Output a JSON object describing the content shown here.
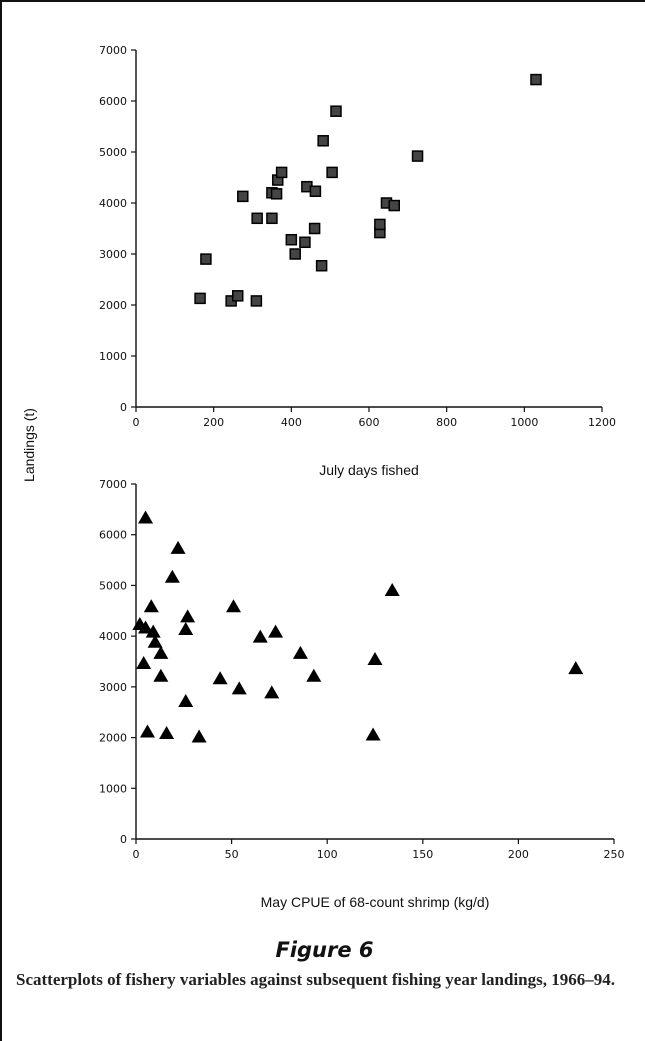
{
  "figure": {
    "title": "Figure 6",
    "caption": "Scatterplots of fishery variables against subsequent fishing year landings, 1966–94."
  },
  "shared_ylabel": "Landings (t)",
  "chart_data": [
    {
      "type": "scatter",
      "marker": "square",
      "xlabel": "July days fished",
      "ylabel": "Landings (t)",
      "xlim": [
        0,
        1200
      ],
      "ylim": [
        0,
        7000
      ],
      "xticks": [
        0,
        200,
        400,
        600,
        800,
        1000,
        1200
      ],
      "yticks": [
        0,
        1000,
        2000,
        3000,
        4000,
        5000,
        6000,
        7000
      ],
      "grid": false,
      "points": [
        {
          "x": 165,
          "y": 2130
        },
        {
          "x": 180,
          "y": 2900
        },
        {
          "x": 245,
          "y": 2080
        },
        {
          "x": 262,
          "y": 2180
        },
        {
          "x": 275,
          "y": 4130
        },
        {
          "x": 310,
          "y": 2080
        },
        {
          "x": 312,
          "y": 3700
        },
        {
          "x": 350,
          "y": 3700
        },
        {
          "x": 350,
          "y": 4200
        },
        {
          "x": 362,
          "y": 4180
        },
        {
          "x": 365,
          "y": 4450
        },
        {
          "x": 375,
          "y": 4600
        },
        {
          "x": 400,
          "y": 3280
        },
        {
          "x": 410,
          "y": 3000
        },
        {
          "x": 435,
          "y": 3230
        },
        {
          "x": 440,
          "y": 4320
        },
        {
          "x": 460,
          "y": 3500
        },
        {
          "x": 462,
          "y": 4230
        },
        {
          "x": 478,
          "y": 2770
        },
        {
          "x": 482,
          "y": 5220
        },
        {
          "x": 505,
          "y": 4600
        },
        {
          "x": 515,
          "y": 5800
        },
        {
          "x": 628,
          "y": 3420
        },
        {
          "x": 628,
          "y": 3580
        },
        {
          "x": 645,
          "y": 4000
        },
        {
          "x": 665,
          "y": 3950
        },
        {
          "x": 725,
          "y": 4920
        },
        {
          "x": 1030,
          "y": 6420
        }
      ]
    },
    {
      "type": "scatter",
      "marker": "triangle",
      "xlabel": "May CPUE of 68-count shrimp (kg/d)",
      "ylabel": "Landings (t)",
      "xlim": [
        0,
        250
      ],
      "ylim": [
        0,
        7000
      ],
      "xticks": [
        0,
        50,
        100,
        150,
        200,
        250
      ],
      "yticks": [
        0,
        1000,
        2000,
        3000,
        4000,
        5000,
        6000,
        7000
      ],
      "grid": false,
      "points": [
        {
          "x": 2,
          "y": 4250
        },
        {
          "x": 4,
          "y": 3480
        },
        {
          "x": 5,
          "y": 6350
        },
        {
          "x": 5,
          "y": 4180
        },
        {
          "x": 6,
          "y": 2130
        },
        {
          "x": 8,
          "y": 4600
        },
        {
          "x": 9,
          "y": 4100
        },
        {
          "x": 10,
          "y": 3900
        },
        {
          "x": 13,
          "y": 3680
        },
        {
          "x": 13,
          "y": 3230
        },
        {
          "x": 16,
          "y": 2100
        },
        {
          "x": 19,
          "y": 5180
        },
        {
          "x": 22,
          "y": 5750
        },
        {
          "x": 26,
          "y": 4150
        },
        {
          "x": 26,
          "y": 2730
        },
        {
          "x": 27,
          "y": 4400
        },
        {
          "x": 33,
          "y": 2030
        },
        {
          "x": 44,
          "y": 3180
        },
        {
          "x": 51,
          "y": 4600
        },
        {
          "x": 54,
          "y": 2980
        },
        {
          "x": 65,
          "y": 4000
        },
        {
          "x": 71,
          "y": 2900
        },
        {
          "x": 73,
          "y": 4100
        },
        {
          "x": 86,
          "y": 3680
        },
        {
          "x": 93,
          "y": 3230
        },
        {
          "x": 124,
          "y": 2070
        },
        {
          "x": 125,
          "y": 3560
        },
        {
          "x": 134,
          "y": 4920
        },
        {
          "x": 230,
          "y": 3380
        }
      ]
    }
  ]
}
